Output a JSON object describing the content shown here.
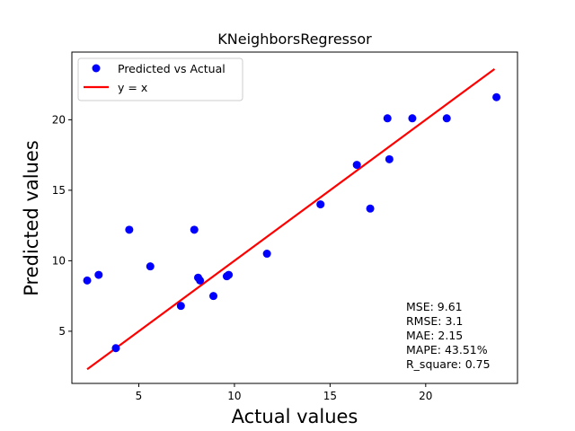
{
  "chart_data": {
    "type": "scatter",
    "title": "KNeighborsRegressor",
    "xlabel": "Actual values",
    "ylabel": "Predicted values",
    "xlim": [
      1.5,
      24.8
    ],
    "ylim": [
      1.3,
      24.8
    ],
    "xticks": [
      5,
      10,
      15,
      20
    ],
    "yticks": [
      5,
      10,
      15,
      20
    ],
    "grid": false,
    "legend_position": "top-left",
    "series": [
      {
        "name": "Predicted vs Actual",
        "kind": "scatter",
        "color": "#0000ff",
        "points": [
          [
            2.3,
            8.6
          ],
          [
            2.9,
            9.0
          ],
          [
            3.8,
            3.8
          ],
          [
            4.5,
            12.2
          ],
          [
            5.6,
            9.6
          ],
          [
            7.2,
            6.8
          ],
          [
            7.9,
            12.2
          ],
          [
            8.1,
            8.8
          ],
          [
            8.2,
            8.6
          ],
          [
            8.9,
            7.5
          ],
          [
            9.6,
            8.9
          ],
          [
            9.7,
            9.0
          ],
          [
            11.7,
            10.5
          ],
          [
            14.5,
            14.0
          ],
          [
            16.4,
            16.8
          ],
          [
            17.1,
            13.7
          ],
          [
            18.0,
            20.1
          ],
          [
            18.1,
            17.2
          ],
          [
            19.3,
            20.1
          ],
          [
            21.1,
            20.1
          ],
          [
            23.7,
            21.6
          ]
        ]
      },
      {
        "name": "y = x",
        "kind": "line",
        "color": "#ff0000",
        "points": [
          [
            2.3,
            2.3
          ],
          [
            23.6,
            23.6
          ]
        ]
      }
    ],
    "metrics": [
      "MSE: 9.61",
      "RMSE: 3.1",
      "MAE: 2.15",
      "MAPE: 43.51%",
      "R_square: 0.75"
    ]
  }
}
